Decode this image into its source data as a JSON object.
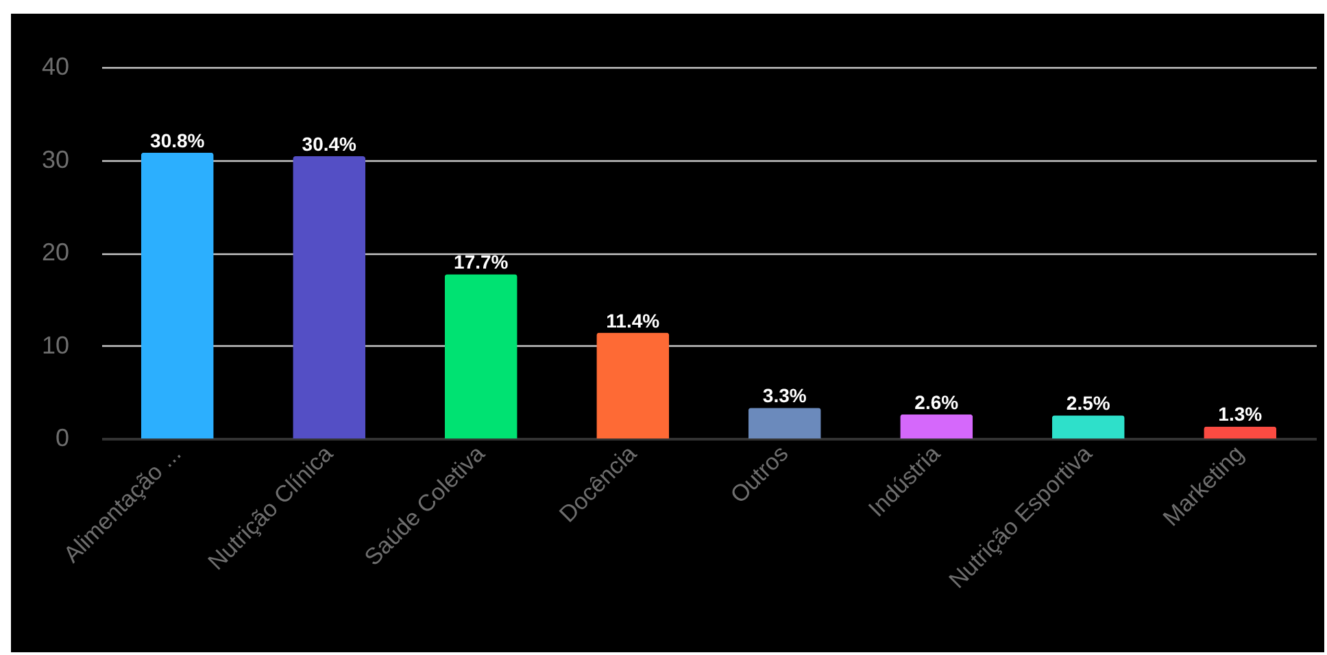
{
  "chart_data": {
    "type": "bar",
    "categories": [
      "Alimentação ...",
      "Nutrição Clínica",
      "Saúde Coletiva",
      "Docência",
      "Outros",
      "Indústria",
      "Nutrição Esportiva",
      "Marketing"
    ],
    "values": [
      30.8,
      30.4,
      17.7,
      11.4,
      3.3,
      2.6,
      2.5,
      1.3
    ],
    "value_labels": [
      "30.8%",
      "30.4%",
      "17.7%",
      "11.4%",
      "3.3%",
      "2.6%",
      "2.5%",
      "1.3%"
    ],
    "colors": [
      "#2caffe",
      "#544fc5",
      "#00e272",
      "#fe6a35",
      "#6b8abc",
      "#d568fb",
      "#2ee0ca",
      "#fa4b42"
    ],
    "ylim": [
      0,
      40
    ],
    "yticks": [
      0,
      10,
      20,
      30,
      40
    ],
    "grid": "y"
  }
}
